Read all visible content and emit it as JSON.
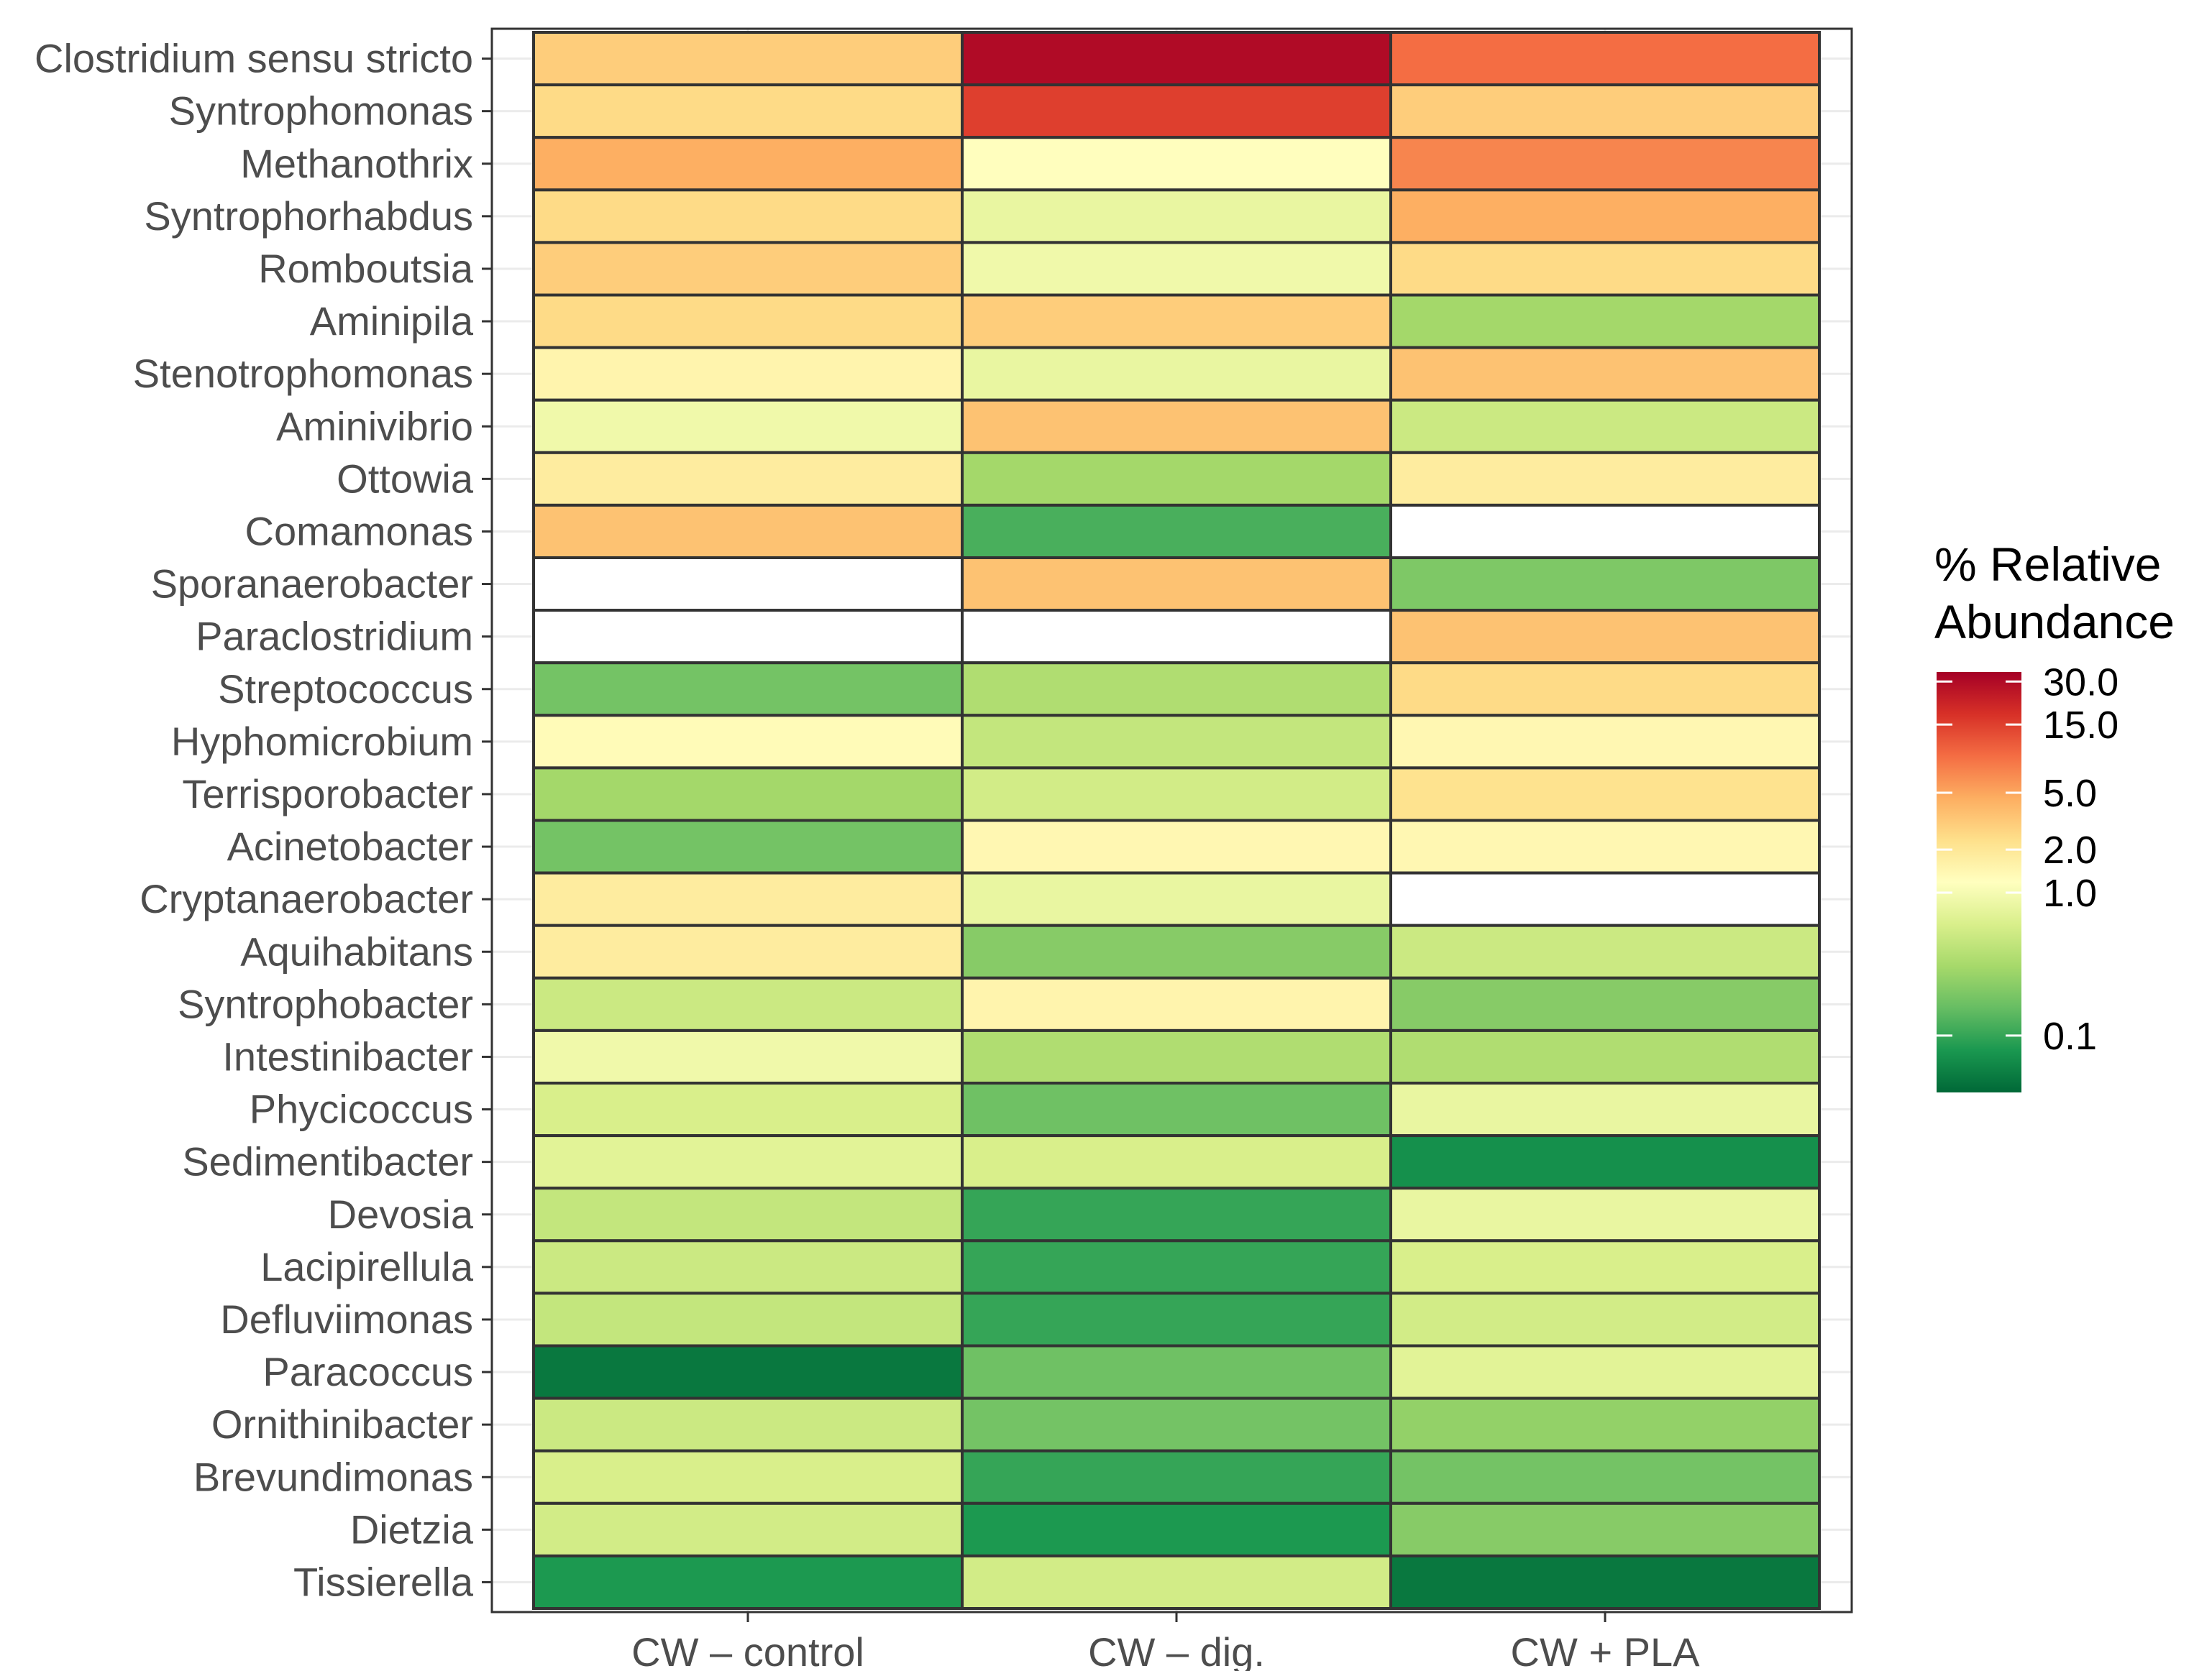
{
  "chart_data": {
    "type": "heatmap",
    "title": "",
    "xlabel": "",
    "ylabel": "",
    "columns": [
      "CW – control",
      "CW – dig.",
      "CW + PLA"
    ],
    "rows": [
      "Clostridium sensu stricto",
      "Syntrophomonas",
      "Methanothrix",
      "Syntrophorhabdus",
      "Romboutsia",
      "Aminipila",
      "Stenotrophomonas",
      "Aminivibrio",
      "Ottowia",
      "Comamonas",
      "Sporanaerobacter",
      "Paraclostridium",
      "Streptococcus",
      "Hyphomicrobium",
      "Terrisporobacter",
      "Acinetobacter",
      "Cryptanaerobacter",
      "Aquihabitans",
      "Syntrophobacter",
      "Intestinibacter",
      "Phycicoccus",
      "Sedimentibacter",
      "Devosia",
      "Lacipirellula",
      "Defluviimonas",
      "Paracoccus",
      "Ornithinibacter",
      "Brevundimonas",
      "Dietzia",
      "Tissierella"
    ],
    "values": [
      [
        3.0,
        30.0,
        9.0
      ],
      [
        2.5,
        15.0,
        3.0
      ],
      [
        4.5,
        1.2,
        7.0
      ],
      [
        2.5,
        0.8,
        4.5
      ],
      [
        3.0,
        0.9,
        2.5
      ],
      [
        2.5,
        3.0,
        0.3
      ],
      [
        1.5,
        0.8,
        3.5
      ],
      [
        0.9,
        3.5,
        0.5
      ],
      [
        1.8,
        0.3,
        1.8
      ],
      [
        3.5,
        0.12,
        null
      ],
      [
        null,
        3.5,
        0.2
      ],
      [
        null,
        null,
        3.5
      ],
      [
        0.18,
        0.35,
        2.5
      ],
      [
        1.3,
        0.45,
        1.4
      ],
      [
        0.3,
        0.55,
        2.2
      ],
      [
        0.18,
        1.4,
        1.4
      ],
      [
        1.8,
        0.8,
        null
      ],
      [
        1.8,
        0.22,
        0.5
      ],
      [
        0.5,
        1.5,
        0.22
      ],
      [
        0.9,
        0.35,
        0.35
      ],
      [
        0.6,
        0.17,
        0.8
      ],
      [
        0.7,
        0.6,
        0.07
      ],
      [
        0.45,
        0.1,
        0.8
      ],
      [
        0.5,
        0.1,
        0.6
      ],
      [
        0.45,
        0.1,
        0.55
      ],
      [
        0.05,
        0.17,
        0.7
      ],
      [
        0.5,
        0.18,
        0.25
      ],
      [
        0.6,
        0.1,
        0.18
      ],
      [
        0.55,
        0.08,
        0.22
      ],
      [
        0.08,
        0.55,
        0.05
      ]
    ],
    "legend": {
      "title_line1": "% Relative",
      "title_line2": "Abundance",
      "ticks": [
        0.1,
        1.0,
        2.0,
        5.0,
        15.0,
        30.0
      ],
      "tick_labels": [
        "0.1",
        "1.0",
        "2.0",
        "5.0",
        "15.0",
        "30.0"
      ],
      "scale": "log",
      "range": [
        0.04,
        35
      ],
      "placement": "right"
    },
    "colors": {
      "stops": [
        "#006837",
        "#1a9850",
        "#66bd63",
        "#a6d96a",
        "#d9ef8b",
        "#ffffbf",
        "#fee08b",
        "#fdae61",
        "#f46d43",
        "#d73027",
        "#a50026"
      ],
      "missing": "#ffffff",
      "cell_border": "#333333",
      "grid": "#ebebeb",
      "panel_border": "#333333"
    }
  }
}
